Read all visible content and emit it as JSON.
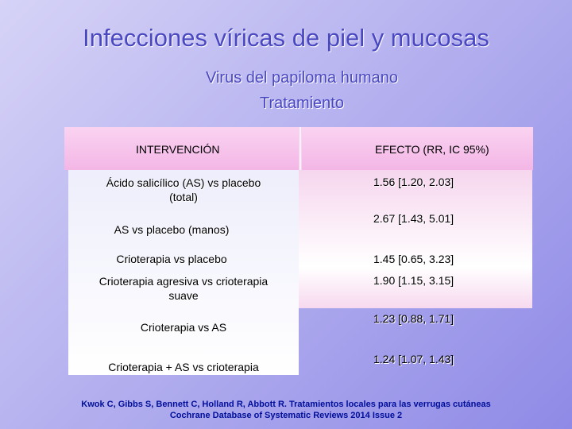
{
  "title": "Infecciones víricas de piel y mucosas",
  "subtitle_line1": "Virus del papiloma humano",
  "subtitle_line2": "Tratamiento",
  "table": {
    "header_intervention": "INTERVENCIÓN",
    "header_effect": "EFECTO (RR, IC 95%)",
    "rows": [
      {
        "intervention": "Ácido salicílico (AS) vs placebo\n(total)",
        "effect": "1.56 [1.20, 2.03]"
      },
      {
        "intervention": "AS vs placebo (manos)",
        "effect": "2.67 [1.43, 5.01]"
      },
      {
        "intervention": "Crioterapia vs placebo",
        "effect": "1.45 [0.65, 3.23]"
      },
      {
        "intervention": "Crioterapia agresiva vs crioterapia\nsuave",
        "effect": "1.90 [1.15, 3.15]"
      },
      {
        "intervention": "Crioterapia vs AS",
        "effect": "1.23 [0.88, 1.71]"
      },
      {
        "intervention": "Crioterapia + AS vs crioterapia",
        "effect": "1.24 [1.07, 1.43]"
      }
    ]
  },
  "citation_line1": "Kwok C, Gibbs S, Bennett C, Holland R, Abbott R. Tratamientos locales para las verrugas cutáneas",
  "citation_line2": "Cochrane Database of Systematic Reviews 2014 Issue 2"
}
